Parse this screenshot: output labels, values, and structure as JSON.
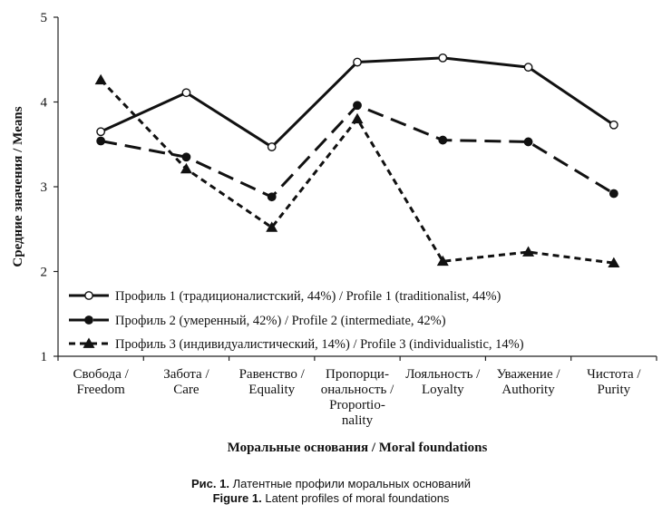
{
  "chart_data": {
    "type": "line",
    "xlabel": "Моральные основания / Moral foundations",
    "ylabel": "Средние значения / Means",
    "ylim": [
      1,
      5
    ],
    "yticks": [
      "1",
      "2",
      "3",
      "4",
      "5"
    ],
    "grid": false,
    "legend_position": "bottom-left",
    "categories": [
      [
        "Свобода /",
        "Freedom"
      ],
      [
        "Забота /",
        "Care"
      ],
      [
        "Равенство /",
        "Equality"
      ],
      [
        "Пропорци-",
        "ональность /",
        "Proportio-",
        "nality"
      ],
      [
        "Лояльность /",
        "Loyalty"
      ],
      [
        "Уважение /",
        "Authority"
      ],
      [
        "Чистота /",
        "Purity"
      ]
    ],
    "series": [
      {
        "name": "Профиль 1 (традиционалистский, 44%) / Profile 1 (traditionalist, 44%)",
        "style": "solid",
        "marker": "circle-open",
        "values": [
          3.65,
          4.11,
          3.47,
          4.47,
          4.52,
          4.41,
          3.73
        ]
      },
      {
        "name": "Профиль 2 (умеренный, 42%) / Profile 2 (intermediate, 42%)",
        "style": "long-dash",
        "marker": "circle-filled",
        "values": [
          3.54,
          3.35,
          2.88,
          3.96,
          3.55,
          3.53,
          2.92
        ]
      },
      {
        "name": "Профиль 3 (индивидуалистический, 14%) / Profile 3 (individualistic, 14%)",
        "style": "short-dash",
        "marker": "triangle-filled",
        "values": [
          4.26,
          3.21,
          2.52,
          3.8,
          2.12,
          2.23,
          2.1
        ]
      }
    ]
  },
  "caption": {
    "ru_prefix": "Рис. 1.",
    "ru_text": " Латентные профили моральных оснований",
    "en_prefix": "Figure 1.",
    "en_text": " Latent profiles of moral foundations"
  }
}
